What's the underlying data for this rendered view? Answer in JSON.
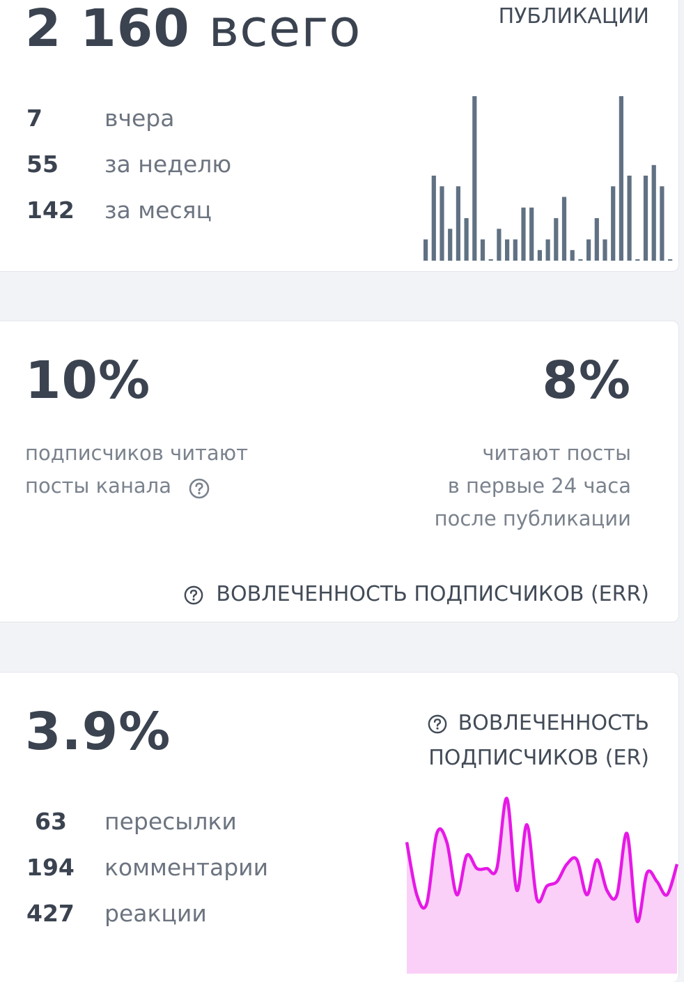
{
  "publications": {
    "total_value": "2 160",
    "total_unit": "всего",
    "title": "ПУБЛИКАЦИИ",
    "stats": [
      {
        "value": "7",
        "label": "вчера"
      },
      {
        "value": "55",
        "label": "за неделю"
      },
      {
        "value": "142",
        "label": "за месяц"
      }
    ],
    "bar_color": "#607183"
  },
  "err": {
    "left_value": "10%",
    "left_desc_line1": "подписчиков читают",
    "left_desc_line2": "посты канала",
    "right_value": "8%",
    "right_desc_line1": "читают посты",
    "right_desc_line2": "в первые 24 часа",
    "right_desc_line3": "после публикации",
    "title": "ВОВЛЕЧЕННОСТЬ ПОДПИСЧИКОВ (ERR)",
    "icon": "question-circle-icon"
  },
  "er": {
    "value": "3.9%",
    "title_line1": "ВОВЛЕЧЕННОСТЬ",
    "title_line2": "ПОДПИСЧИКОВ (ER)",
    "icon": "question-circle-icon",
    "stats": [
      {
        "value": "63",
        "label": "пересылки"
      },
      {
        "value": "194",
        "label": "комментарии"
      },
      {
        "value": "427",
        "label": "реакции"
      }
    ],
    "line_color": "#e619e6",
    "fill_color": "#fbd0f8"
  },
  "chart_data": [
    {
      "type": "bar",
      "values": [
        2,
        8,
        7,
        3,
        7,
        4,
        16,
        2,
        0,
        3,
        2,
        2,
        5,
        5,
        1,
        2,
        4,
        6,
        1,
        0,
        2,
        4,
        2,
        7,
        16,
        8,
        0,
        8,
        9,
        7,
        0
      ],
      "ylim": [
        0,
        16
      ]
    },
    {
      "type": "area",
      "values": [
        30,
        18,
        16,
        32,
        30,
        18,
        27,
        24,
        24,
        24,
        40,
        19,
        34,
        17,
        20,
        21,
        25,
        26,
        18,
        26,
        19,
        18,
        32,
        12,
        23,
        21,
        18,
        25
      ],
      "ylim": [
        0,
        42
      ]
    }
  ]
}
